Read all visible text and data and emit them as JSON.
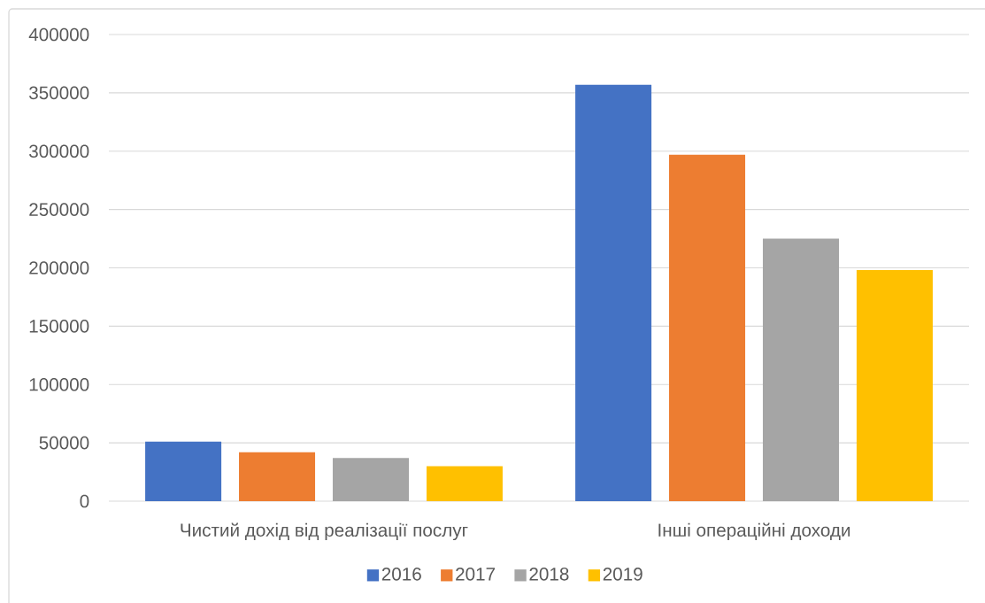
{
  "chart_data": {
    "type": "bar",
    "categories": [
      "Чистий дохід від реалізації послуг",
      "Інші операційні доходи"
    ],
    "series": [
      {
        "name": "2016",
        "color": "#4472c4",
        "values": [
          51000,
          357000
        ]
      },
      {
        "name": "2017",
        "color": "#ed7d31",
        "values": [
          42000,
          297000
        ]
      },
      {
        "name": "2018",
        "color": "#a5a5a5",
        "values": [
          37000,
          225000
        ]
      },
      {
        "name": "2019",
        "color": "#ffc000",
        "values": [
          30000,
          198000
        ]
      }
    ],
    "ylim": [
      0,
      400000
    ],
    "yticks": [
      0,
      50000,
      100000,
      150000,
      200000,
      250000,
      300000,
      350000,
      400000
    ],
    "grid": "y",
    "legend": "bottom"
  }
}
